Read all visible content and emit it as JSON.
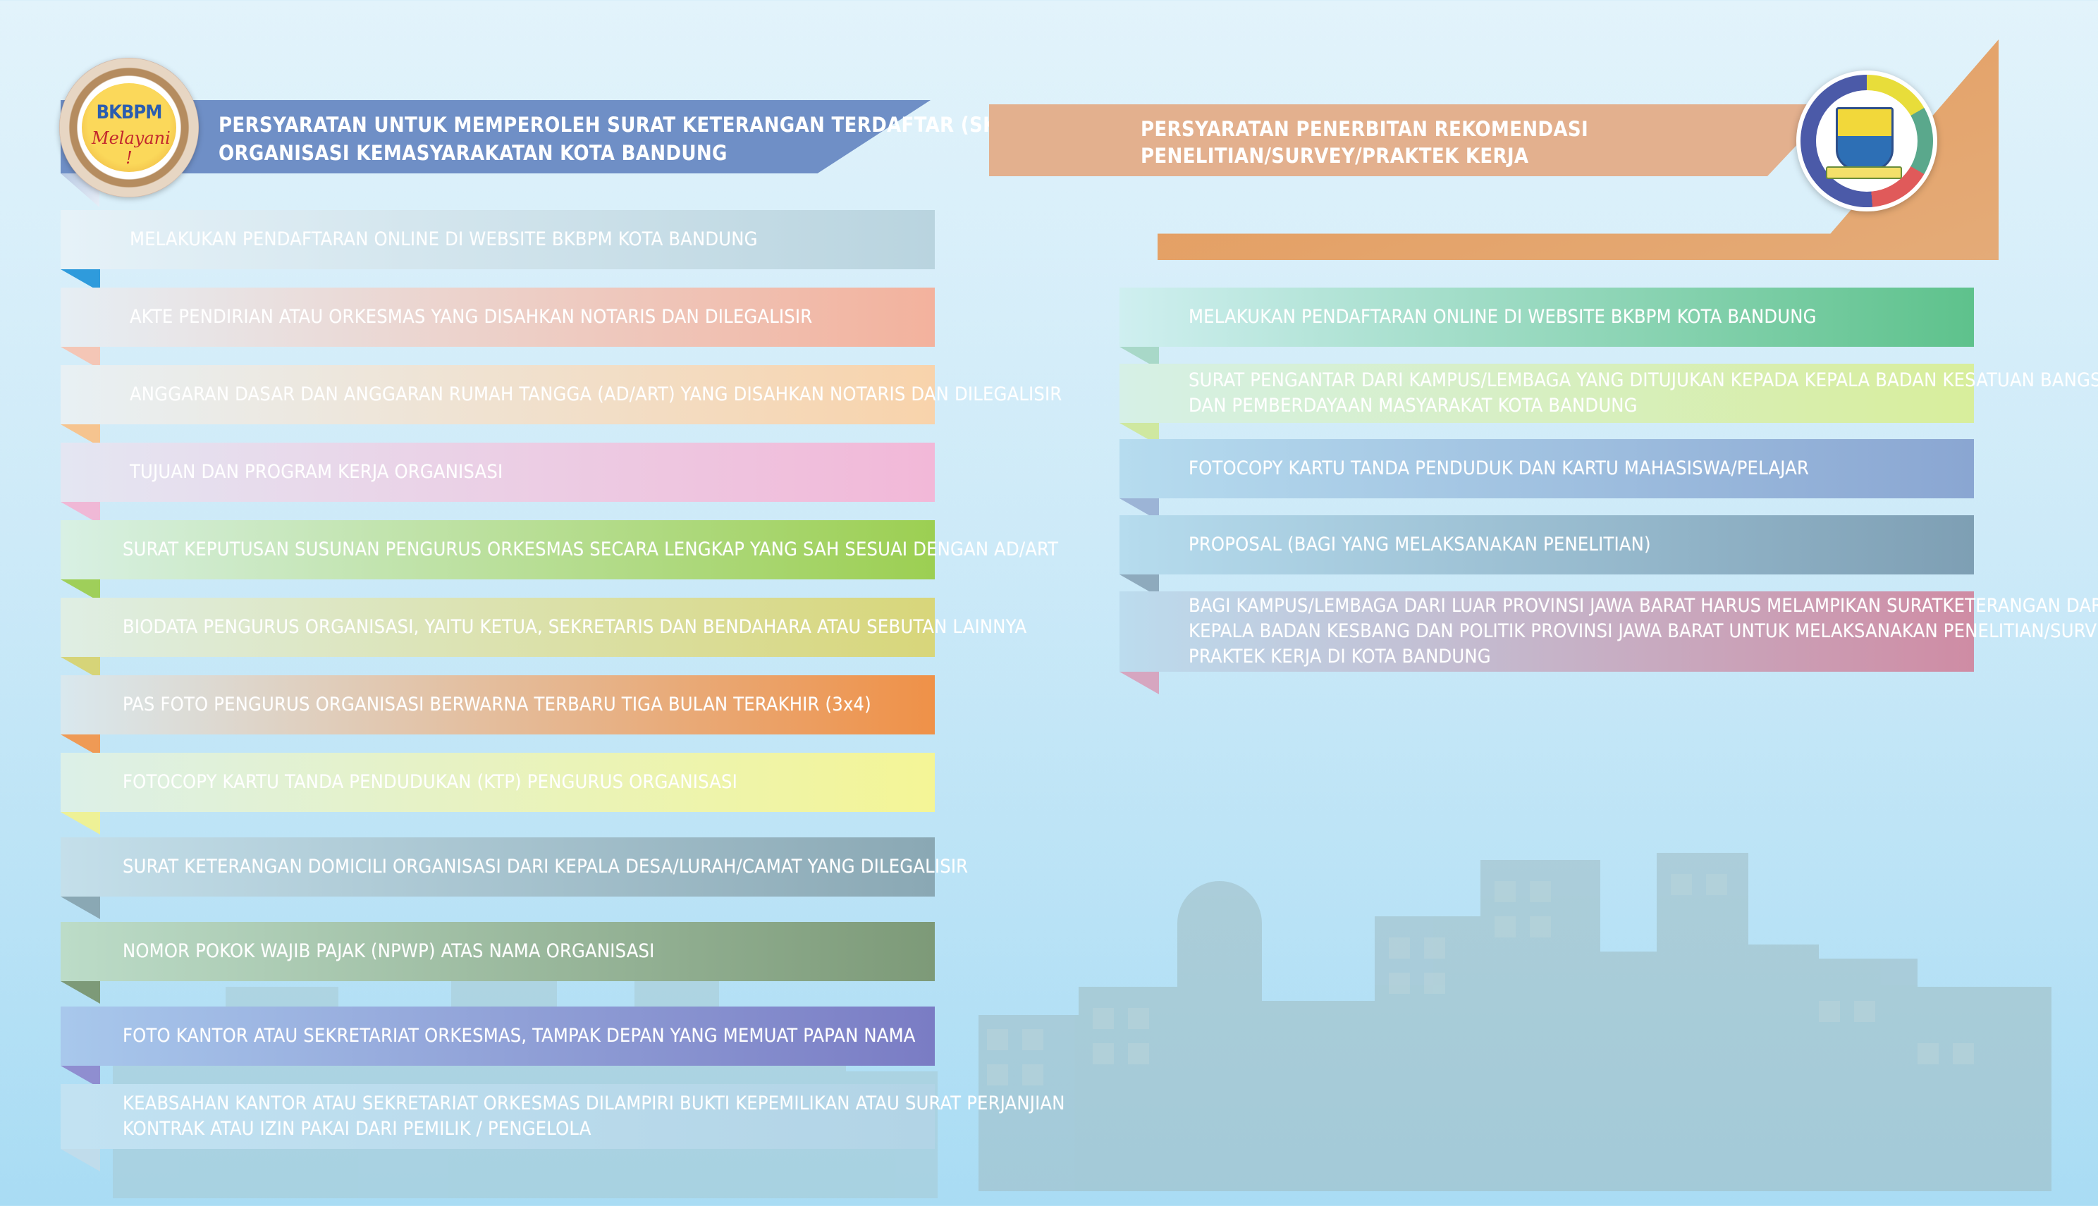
{
  "left_panel": {
    "header_lines": [
      "PERSYARATAN UNTUK MEMPEROLEH SURAT KETERANGAN TERDAFTAR (SKT)",
      "ORGANISASI KEMASYARAKATAN KOTA BANDUNG"
    ],
    "logo": {
      "title": "BKBPM",
      "subtitle": "Melayani !"
    },
    "items": [
      {
        "text": "MELAKUKAN PENDAFTARAN ONLINE DI WEBSITE BKBPM KOTA BANDUNG",
        "color_from": "#e6f2f8",
        "color_to": "#b9d4df",
        "fold": "#2f9bdc"
      },
      {
        "text": "AKTE PENDIRIAN ATAU ORKESMAS YANG DISAHKAN NOTARIS DAN DILEGALISIR",
        "color_from": "#e6eef4",
        "color_to": "#f3b29d",
        "fold": "#f4c6b6"
      },
      {
        "text": "ANGGARAN DASAR DAN ANGGARAN RUMAH TANGGA (AD/ART) YANG DISAHKAN NOTARIS DAN DILEGALISIR",
        "color_from": "#e8f0f4",
        "color_to": "#f8d3ab",
        "fold": "#f6c48f"
      },
      {
        "text": "TUJUAN DAN PROGRAM KERJA ORGANISASI",
        "color_from": "#e4e6f2",
        "color_to": "#f2b8d8",
        "fold": "#f0b8d6"
      },
      {
        "text": "SURAT KEPUTUSAN SUSUNAN PENGURUS ORKESMAS SECARA LENGKAP YANG SAH  SESUAI DENGAN AD/ART",
        "color_from": "#d8f0e4",
        "color_to": "#9ccf52",
        "fold": "#9fcf5a"
      },
      {
        "text": "BIODATA PENGURUS ORGANISASI, YAITU KETUA, SEKRETARIS DAN BENDAHARA ATAU SEBUTAN LAINNYA",
        "color_from": "#dfeee4",
        "color_to": "#d8d67a",
        "fold": "#d6d478"
      },
      {
        "text": "PAS FOTO PENGURUS ORGANISASI BERWARNA TERBARU TIGA BULAN TERAKHIR (3x4)",
        "color_from": "#d9e8ee",
        "color_to": "#ef9148",
        "fold": "#ef9a55"
      },
      {
        "text": "FOTOCOPY KARTU TANDA PENDUDUKAN (KTP) PENGURUS ORGANISASI",
        "color_from": "#dcf0e8",
        "color_to": "#f4f596",
        "fold": "#eef196"
      },
      {
        "text": "SURAT KETERANGAN DOMICILI ORGANISASI DARI KEPALA DESA/LURAH/CAMAT YANG DILEGALISIR",
        "color_from": "#c4dfea",
        "color_to": "#8aa8b4",
        "fold": "#8aa8b4"
      },
      {
        "text": "NOMOR POKOK WAJIB PAJAK (NPWP) ATAS NAMA ORGANISASI",
        "color_from": "#bcdcc8",
        "color_to": "#7d9a78",
        "fold": "#7d9a78"
      },
      {
        "text": "FOTO KANTOR ATAU SEKRETARIAT ORKESMAS, TAMPAK DEPAN YANG MEMUAT PAPAN NAMA",
        "color_from": "#a8c8ec",
        "color_to": "#7a7cc4",
        "fold": "#8f8ed0"
      },
      {
        "text_lines": [
          "KEABSAHAN KANTOR ATAU SEKRETARIAT ORKESMAS DILAMPIRI BUKTI KEPEMILIKAN ATAU SURAT PERJANJIAN",
          "KONTRAK ATAU IZIN PAKAI DARI PEMILIK / PENGELOLA"
        ],
        "color_from": "#c2e2f2",
        "color_to": "#b2d4e6",
        "fold": "#c0dceb"
      }
    ]
  },
  "right_panel": {
    "header_lines": [
      "PERSYARATAN PENERBITAN REKOMENDASI",
      "PENELITIAN/SURVEY/PRAKTEK KERJA"
    ],
    "items": [
      {
        "text_lines": [
          "MELAKUKAN PENDAFTARAN ONLINE DI WEBSITE BKBPM KOTA BANDUNG"
        ],
        "color_from": "#cfeff0",
        "color_to": "#5ec28c",
        "fold": "#a8d8c8"
      },
      {
        "text_lines": [
          "SURAT PENGANTAR DARI KAMPUS/LEMBAGA YANG DITUJUKAN KEPADA KEPALA BADAN KESATUAN BANGSA",
          "DAN PEMBERDAYAAN MASYARAKAT KOTA BANDUNG"
        ],
        "color_from": "#d6f0e6",
        "color_to": "#d8ee9c",
        "fold": "#cfe8a0"
      },
      {
        "text_lines": [
          "FOTOCOPY KARTU TANDA PENDUDUK DAN KARTU MAHASISWA/PELAJAR"
        ],
        "color_from": "#b6dcef",
        "color_to": "#8aa6d2",
        "fold": "#9cb4d6"
      },
      {
        "text_lines": [
          "PROPOSAL (BAGI YANG MELAKSANAKAN PENELITIAN)"
        ],
        "color_from": "#b6dcee",
        "color_to": "#7e9fb4",
        "fold": "#8eaabd"
      },
      {
        "text_lines": [
          "BAGI KAMPUS/LEMBAGA DARI LUAR PROVINSI JAWA BARAT HARUS MELAMPIKAN SURATKETERANGAN DARI",
          "KEPALA BADAN KESBANG DAN POLITIK PROVINSI JAWA BARAT UNTUK MELAKSANAKAN PENELITIAN/SURVEY/",
          "PRAKTEK KERJA DI KOTA BANDUNG"
        ],
        "color_from": "#bcdcee",
        "color_to": "#cf8ca4",
        "fold": "#d6a6c0"
      }
    ]
  }
}
